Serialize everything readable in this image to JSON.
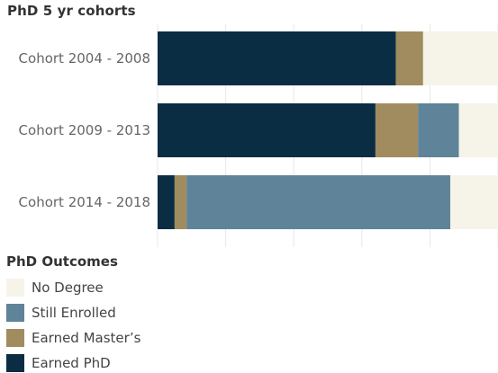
{
  "chart_data": {
    "type": "bar",
    "orientation": "horizontal",
    "stacked": true,
    "title": "PhD 5 yr cohorts",
    "categories": [
      "Cohort 2004 - 2008",
      "Cohort 2009 - 2013",
      "Cohort 2014 - 2018"
    ],
    "series": [
      {
        "name": "Earned PhD",
        "color": "#0b2d44",
        "values": [
          0.7,
          0.64,
          0.05
        ]
      },
      {
        "name": "Earned Master’s",
        "color": "#a08c5e",
        "values": [
          0.08,
          0.125,
          0.035
        ]
      },
      {
        "name": "Still Enrolled",
        "color": "#5f8499",
        "values": [
          0.0,
          0.12,
          0.775
        ]
      },
      {
        "name": "No Degree",
        "color": "#f6f3e9",
        "values": [
          0.22,
          0.115,
          0.14
        ]
      }
    ],
    "xlim": [
      0,
      1
    ],
    "grid": true,
    "legend": {
      "title": "PhD Outcomes",
      "position": "bottom-left",
      "items": [
        "No Degree",
        "Still Enrolled",
        "Earned Master’s",
        "Earned PhD"
      ]
    }
  }
}
